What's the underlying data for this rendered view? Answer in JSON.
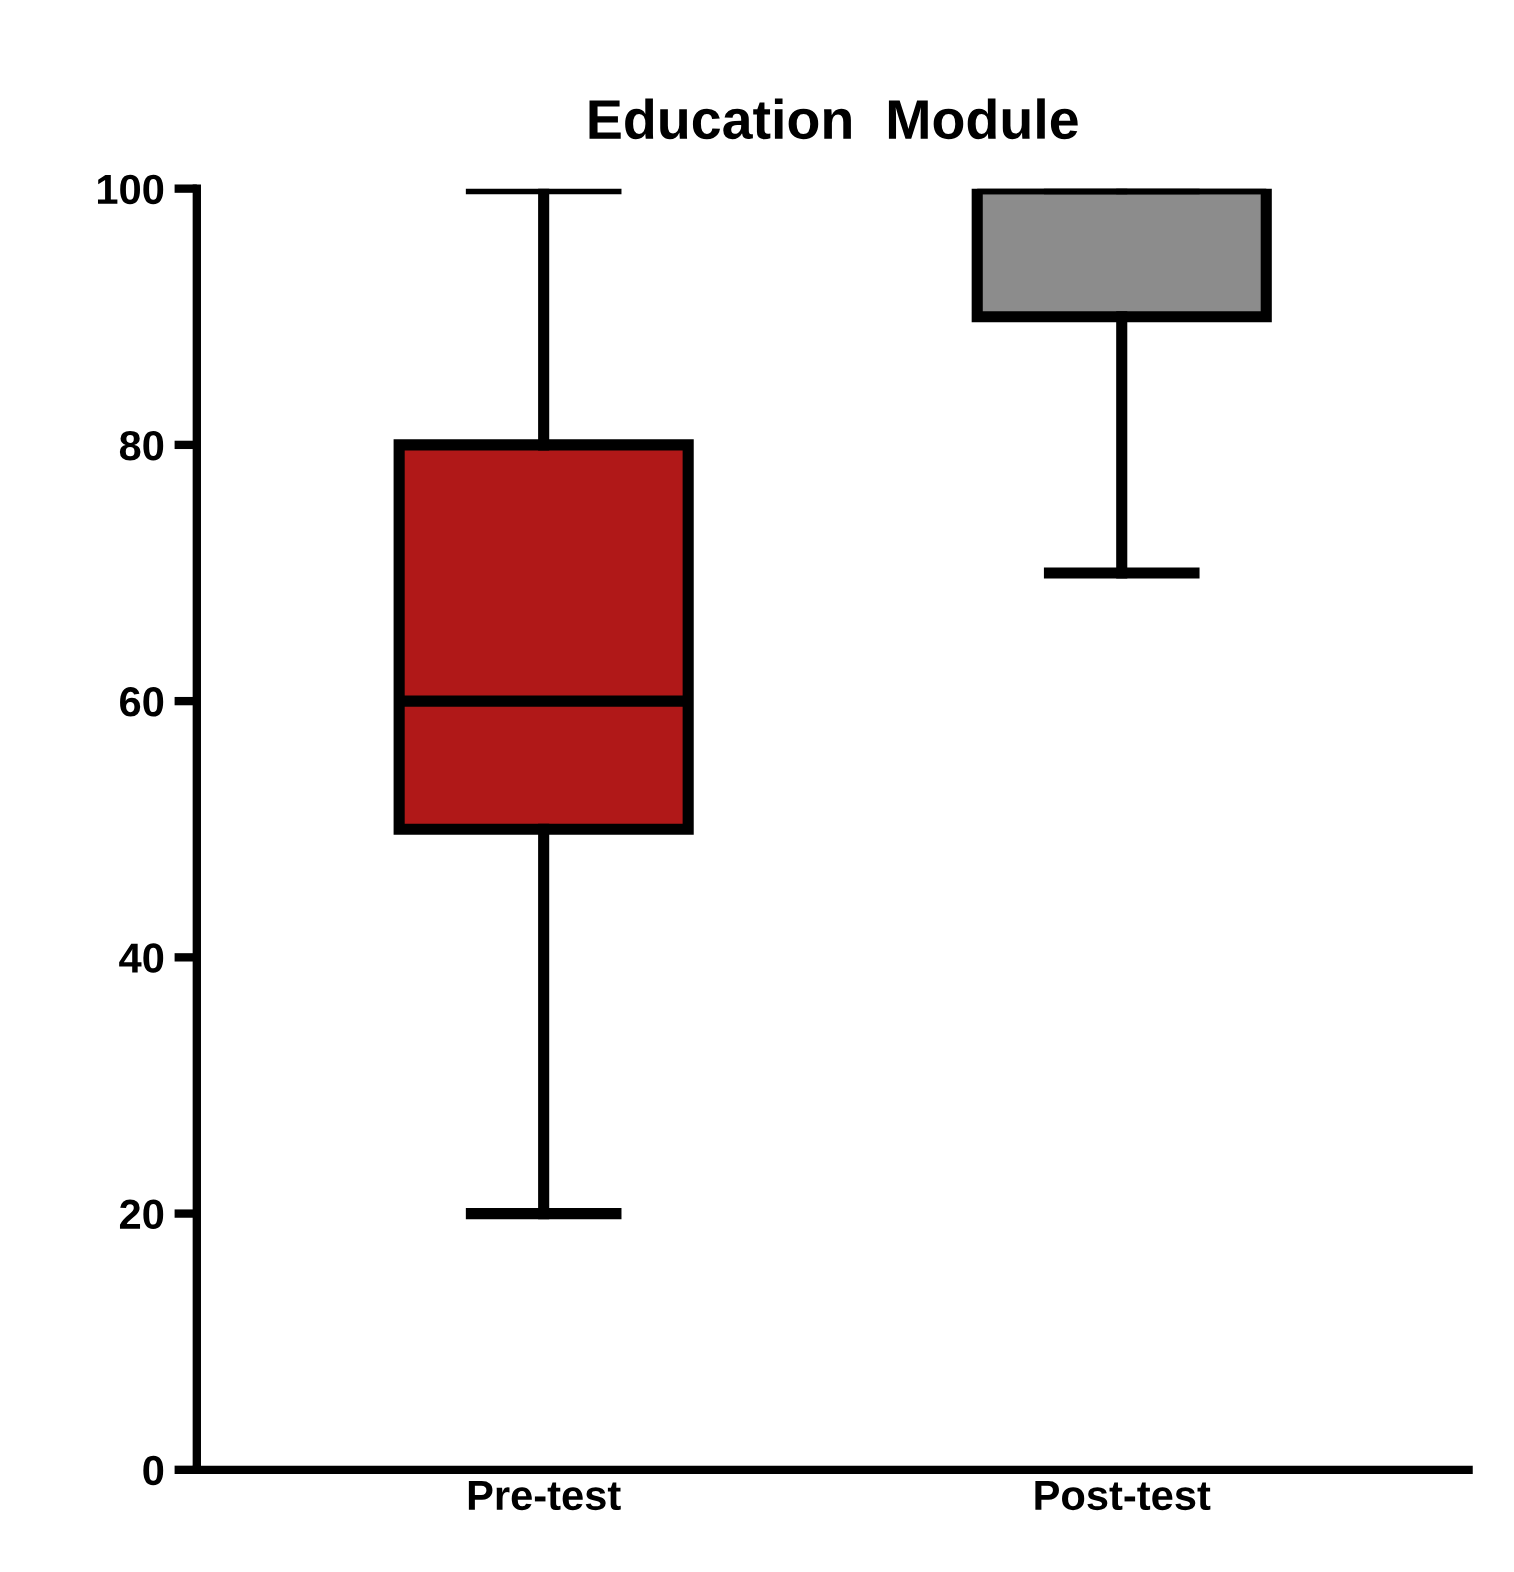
{
  "chart_data": {
    "type": "box",
    "title": "Education  Module",
    "categories": [
      "Pre-test",
      "Post-test"
    ],
    "boxes": [
      {
        "low": 20,
        "q1": 50,
        "median": 60,
        "q3": 80,
        "high": 100
      },
      {
        "low": 70,
        "q1": 90,
        "median": 100,
        "q3": 100,
        "high": 100
      }
    ],
    "colors": [
      "#b01818",
      "#8c8c8c"
    ],
    "ylim": [
      0,
      100
    ],
    "yticks": [
      0,
      20,
      40,
      60,
      80,
      100
    ],
    "grid": false,
    "legend": false
  }
}
